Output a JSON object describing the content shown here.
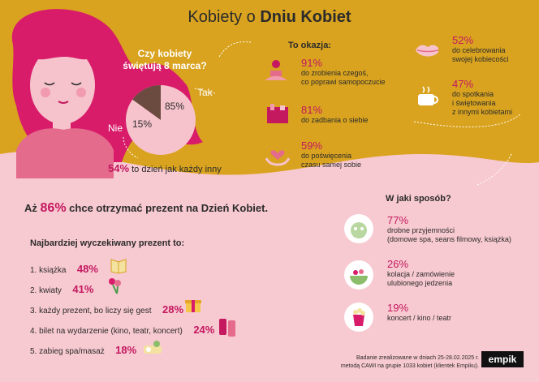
{
  "title": {
    "prefix": "Kobiety o",
    "bold": "Dniu Kobiet"
  },
  "question": {
    "line1": "Czy kobiety",
    "line2": "świętują 8 marca?"
  },
  "pie": {
    "yes_label": "Tak",
    "no_label": "Nie",
    "yes_value": "85%",
    "no_value": "15%",
    "yes_fraction": 0.85,
    "no_fraction": 0.15
  },
  "no_note": {
    "value": "54%",
    "text": "to dzień jak każdy inny"
  },
  "occasion": {
    "heading": "To okazja:",
    "items": [
      {
        "value": "91%",
        "text1": "do zrobienia czegoś,",
        "text2": "co poprawi samopoczucie",
        "icon": "meditation-icon"
      },
      {
        "value": "81%",
        "text1": "do zadbania o siebie",
        "text2": "",
        "icon": "cosmetics-icon"
      },
      {
        "value": "59%",
        "text1": "do poświęcenia",
        "text2": "czasu samej sobie",
        "icon": "heart-hands-icon"
      },
      {
        "value": "52%",
        "text1": "do celebrowania",
        "text2": "swojej kobiecości",
        "icon": "lips-icon"
      },
      {
        "value": "47%",
        "text1": "do spotkania",
        "text2": "i świętowania",
        "text3": "z innymi kobietami",
        "icon": "coffee-icon"
      }
    ]
  },
  "gift_headline": {
    "prefix": "Aż",
    "value": "86%",
    "suffix": "chce otrzymać prezent na Dzień Kobiet."
  },
  "gifts": {
    "heading": "Najbardziej wyczekiwany prezent to:",
    "items": [
      {
        "label": "1. książka",
        "value": "48%",
        "icon": "book-icon"
      },
      {
        "label": "2. kwiaty",
        "value": "41%",
        "icon": "flowers-icon"
      },
      {
        "label": "3. każdy prezent, bo liczy się gest",
        "value": "28%",
        "icon": "gift-icon"
      },
      {
        "label": "4. bilet na wydarzenie (kino, teatr, koncert)",
        "value": "24%",
        "icon": "tickets-icon"
      },
      {
        "label": "5. zabieg spa/masaż",
        "value": "18%",
        "icon": "spa-icon"
      }
    ]
  },
  "how": {
    "heading": "W jaki sposób?",
    "items": [
      {
        "value": "77%",
        "text1": "drobne przyjemności",
        "text2": "(domowe spa, seans filmowy, książka)",
        "icon": "face-mask-icon"
      },
      {
        "value": "26%",
        "text1": "kolacja / zamówienie",
        "text2": "ulubionego jedzenia",
        "icon": "salad-icon"
      },
      {
        "value": "19%",
        "text1": "koncert / kino / teatr",
        "text2": "",
        "icon": "popcorn-icon"
      }
    ]
  },
  "footer": {
    "line1": "Badanie zrealizowane w dniach 25-28.02.2025 r.",
    "line2": "metodą CAWI na grupie 1033 kobiet (klientek Empiku)."
  },
  "brand": "empik",
  "colors": {
    "gold": "#d9a31f",
    "pink_bg": "#f7c9d0",
    "magenta": "#c4185f",
    "pie_light": "#f6c3cc",
    "pie_dark": "#6b4a3f"
  }
}
